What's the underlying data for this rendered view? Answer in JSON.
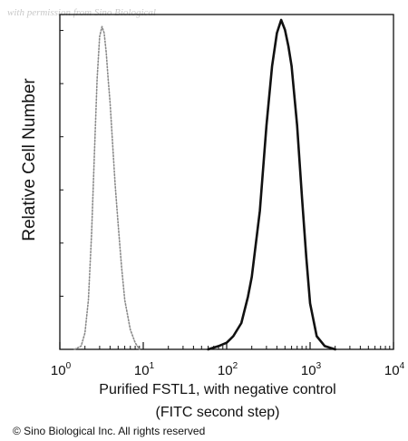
{
  "watermark": "with permission from Sino Biological",
  "copyright": "© Sino Biological Inc. All rights reserved",
  "chart_data": {
    "type": "line",
    "title": "",
    "ylabel": "Relative Cell Number",
    "xlabel_line1": "Purified FSTL1, with negative control",
    "xlabel_line2": "(FITC second step)",
    "x_scale": "log",
    "xlim": [
      1,
      10000
    ],
    "ylim": [
      0,
      1
    ],
    "grid": false,
    "legend": "none",
    "x_ticks": [
      {
        "base": "10",
        "exp": "0",
        "value": 1
      },
      {
        "base": "10",
        "exp": "1",
        "value": 10
      },
      {
        "base": "10",
        "exp": "2",
        "value": 100
      },
      {
        "base": "10",
        "exp": "3",
        "value": 1000
      },
      {
        "base": "10",
        "exp": "4",
        "value": 10000
      }
    ],
    "y_minor_tick_count": 6,
    "series": [
      {
        "style": "dotted",
        "color": "#8a8a8a",
        "x": [
          1.5,
          1.8,
          2.0,
          2.2,
          2.4,
          2.6,
          2.8,
          3.0,
          3.2,
          3.4,
          3.6,
          3.8,
          4.0,
          4.3,
          4.6,
          5.0,
          5.5,
          6.0,
          7.0,
          8.0,
          9.0
        ],
        "y": [
          0.0,
          0.01,
          0.05,
          0.15,
          0.35,
          0.6,
          0.82,
          0.95,
          0.98,
          0.96,
          0.9,
          0.82,
          0.75,
          0.62,
          0.5,
          0.38,
          0.25,
          0.15,
          0.06,
          0.02,
          0.0
        ]
      },
      {
        "style": "solid",
        "color": "#111111",
        "x": [
          60,
          80,
          100,
          120,
          150,
          180,
          200,
          250,
          300,
          350,
          400,
          450,
          500,
          550,
          600,
          700,
          800,
          900,
          1000,
          1200,
          1500,
          2000
        ],
        "y": [
          0.0,
          0.01,
          0.02,
          0.04,
          0.08,
          0.16,
          0.22,
          0.42,
          0.68,
          0.86,
          0.96,
          1.0,
          0.97,
          0.92,
          0.86,
          0.68,
          0.46,
          0.28,
          0.14,
          0.04,
          0.01,
          0.0
        ]
      }
    ]
  }
}
